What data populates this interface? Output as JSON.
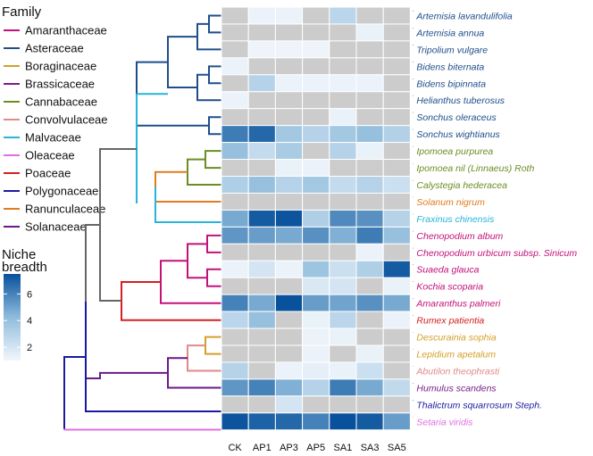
{
  "chart_data": {
    "type": "heatmap",
    "title": "",
    "legend": {
      "family_title": "Family",
      "families": [
        {
          "name": "Amaranthaceae",
          "color": "#c2127a"
        },
        {
          "name": "Asteraceae",
          "color": "#1f4e8c"
        },
        {
          "name": "Boraginaceae",
          "color": "#d4a02a"
        },
        {
          "name": "Brassicaceae",
          "color": "#7a1f8c"
        },
        {
          "name": "Cannabaceae",
          "color": "#6b8e23"
        },
        {
          "name": "Convolvulaceae",
          "color": "#e08a8a"
        },
        {
          "name": "Malvaceae",
          "color": "#28b4d8"
        },
        {
          "name": "Oleaceae",
          "color": "#e070e0"
        },
        {
          "name": "Poaceae",
          "color": "#d42020"
        },
        {
          "name": "Polygonaceae",
          "color": "#1a1aa0"
        },
        {
          "name": "Ranunculaceae",
          "color": "#e07b20"
        },
        {
          "name": "Solanaceae",
          "color": "#6a1a8a"
        }
      ],
      "colorbar_title": "Niche\nbreadth",
      "colorbar_ticks": [
        2,
        4,
        6
      ],
      "colorbar_range": [
        1,
        7.5
      ]
    },
    "columns": [
      "CK",
      "AP1",
      "AP3",
      "AP5",
      "SA1",
      "SA3",
      "SA5"
    ],
    "species": [
      {
        "name": "Artemisia lavandulifolia",
        "color": "#1f4e8c"
      },
      {
        "name": "Artemisia annua",
        "color": "#1f4e8c"
      },
      {
        "name": "Tripolium vulgare",
        "color": "#1f4e8c"
      },
      {
        "name": "Bidens biternata",
        "color": "#1f4e8c"
      },
      {
        "name": "Bidens bipinnata",
        "color": "#1f4e8c"
      },
      {
        "name": "Helianthus tuberosus",
        "color": "#1f4e8c"
      },
      {
        "name": "Sonchus oleraceus",
        "color": "#1f4e8c"
      },
      {
        "name": "Sonchus wightianus",
        "color": "#1f4e8c"
      },
      {
        "name": "Ipomoea purpurea",
        "color": "#6b8e23"
      },
      {
        "name": "Ipomoea nil (Linnaeus) Roth",
        "color": "#6b8e23"
      },
      {
        "name": "Calystegia hederacea",
        "color": "#6b8e23"
      },
      {
        "name": "Solanum nigrum",
        "color": "#e07b20"
      },
      {
        "name": "Fraxinus chinensis",
        "color": "#28b4d8"
      },
      {
        "name": "Chenopodium album",
        "color": "#c2127a"
      },
      {
        "name": "Chenopodium urbicum subsp. Sinicum",
        "color": "#c2127a"
      },
      {
        "name": "Suaeda glauca",
        "color": "#c2127a"
      },
      {
        "name": "Kochia scoparia",
        "color": "#c2127a"
      },
      {
        "name": "Amaranthus palmeri",
        "color": "#c2127a"
      },
      {
        "name": "Rumex patientia",
        "color": "#d42020"
      },
      {
        "name": "Descurainia sophia",
        "color": "#d4a02a"
      },
      {
        "name": "Lepidium apetalum",
        "color": "#d4a02a"
      },
      {
        "name": "Abutilon theophrasti",
        "color": "#e08a8a"
      },
      {
        "name": "Humulus scandens",
        "color": "#7a1f8c"
      },
      {
        "name": "Thalictrum squarrosum Steph.",
        "color": "#1a1aa0"
      },
      {
        "name": "Setaria viridis",
        "color": "#e070e0"
      }
    ],
    "values": [
      [
        null,
        1.2,
        1.2,
        null,
        2.8,
        null,
        null
      ],
      [
        null,
        null,
        null,
        null,
        null,
        1.3,
        null
      ],
      [
        null,
        1.1,
        1.1,
        1.1,
        null,
        null,
        null
      ],
      [
        1.2,
        null,
        null,
        null,
        null,
        null,
        null
      ],
      [
        null,
        3.0,
        1.2,
        1.2,
        1.2,
        1.2,
        null
      ],
      [
        1.2,
        null,
        null,
        null,
        null,
        null,
        null
      ],
      [
        null,
        null,
        null,
        null,
        1.3,
        null,
        null
      ],
      [
        6.2,
        6.8,
        3.6,
        3.0,
        3.6,
        4.0,
        3.1
      ],
      [
        4.0,
        2.5,
        3.4,
        null,
        3.0,
        1.3,
        null
      ],
      [
        null,
        null,
        1.3,
        1.2,
        null,
        null,
        null
      ],
      [
        3.2,
        4.0,
        3.0,
        3.6,
        2.5,
        3.0,
        2.3
      ],
      [
        null,
        null,
        null,
        null,
        null,
        null,
        null
      ],
      [
        4.8,
        7.2,
        7.4,
        3.2,
        5.8,
        5.6,
        3.0
      ],
      [
        5.4,
        5.2,
        4.8,
        5.6,
        4.6,
        6.2,
        4.0
      ],
      [
        null,
        null,
        null,
        null,
        null,
        1.2,
        null
      ],
      [
        1.2,
        2.0,
        1.2,
        3.8,
        2.3,
        3.2,
        7.2
      ],
      [
        null,
        null,
        null,
        1.8,
        2.0,
        null,
        1.3
      ],
      [
        6.0,
        4.8,
        7.6,
        5.2,
        5.0,
        5.6,
        4.8
      ],
      [
        2.8,
        4.0,
        null,
        1.3,
        2.8,
        null,
        1.2
      ],
      [
        null,
        null,
        null,
        1.2,
        1.3,
        null,
        null
      ],
      [
        null,
        null,
        null,
        1.2,
        null,
        1.3,
        null
      ],
      [
        3.0,
        null,
        1.2,
        1.4,
        1.3,
        2.3,
        null
      ],
      [
        5.4,
        6.0,
        4.6,
        3.0,
        6.2,
        4.8,
        2.6
      ],
      [
        null,
        null,
        2.0,
        null,
        null,
        null,
        null
      ],
      [
        7.4,
        7.0,
        6.8,
        6.0,
        7.6,
        7.2,
        5.2
      ]
    ],
    "na_color": "#cccccc"
  }
}
